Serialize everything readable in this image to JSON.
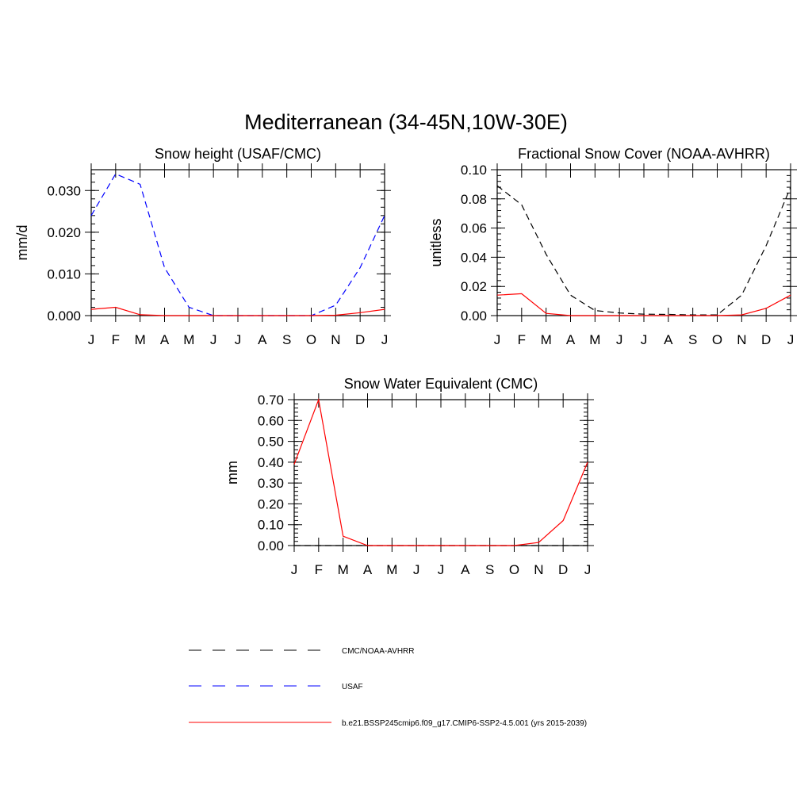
{
  "title": "Mediterranean (34-45N,10W-30E)",
  "month_labels": [
    "J",
    "F",
    "M",
    "A",
    "M",
    "J",
    "J",
    "A",
    "S",
    "O",
    "N",
    "D",
    "J"
  ],
  "colors": {
    "obs": "#000000",
    "usaf": "#0000ff",
    "model": "#ff0000"
  },
  "legend": [
    {
      "label": "CMC/NOAA-AVHRR",
      "color": "#000000",
      "dash": "dashed"
    },
    {
      "label": "USAF",
      "color": "#0000ff",
      "dash": "dashed"
    },
    {
      "label": "b.e21.BSSP245cmip6.f09_g17.CMIP6-SSP2-4.5.001 (yrs 2015-2039)",
      "color": "#ff0000",
      "dash": "solid"
    }
  ],
  "chart_data": [
    {
      "type": "line",
      "title": "Snow height (USAF/CMC)",
      "ylabel": "mm/d",
      "ylim": [
        0,
        0.035
      ],
      "yticks": [
        0,
        0.01,
        0.02,
        0.03
      ],
      "ytick_labels": [
        "0.000",
        "0.010",
        "0.020",
        "0.030"
      ],
      "x": [
        "J",
        "F",
        "M",
        "A",
        "M",
        "J",
        "J",
        "A",
        "S",
        "O",
        "N",
        "D",
        "J"
      ],
      "series": [
        {
          "name": "USAF",
          "color": "#0000ff",
          "dash": "dashed",
          "values": [
            0.024,
            0.034,
            0.0315,
            0.0115,
            0.002,
            0.0,
            0.0,
            0.0,
            0.0,
            0.0,
            0.0025,
            0.0115,
            0.024
          ]
        },
        {
          "name": "b.e21.BSSP245cmip6.f09_g17.CMIP6-SSP2-4.5.001 (yrs 2015-2039)",
          "color": "#ff0000",
          "dash": "solid",
          "values": [
            0.0015,
            0.002,
            0.0002,
            0.0,
            0.0,
            0.0,
            0.0,
            0.0,
            0.0,
            0.0,
            0.0001,
            0.0007,
            0.0015
          ]
        }
      ]
    },
    {
      "type": "line",
      "title": "Fractional Snow Cover (NOAA-AVHRR)",
      "ylabel": "unitless",
      "ylim": [
        0,
        0.1
      ],
      "yticks": [
        0,
        0.02,
        0.04,
        0.06,
        0.08,
        0.1
      ],
      "ytick_labels": [
        "0.00",
        "0.02",
        "0.04",
        "0.06",
        "0.08",
        "0.10"
      ],
      "x": [
        "J",
        "F",
        "M",
        "A",
        "M",
        "J",
        "J",
        "A",
        "S",
        "O",
        "N",
        "D",
        "J"
      ],
      "series": [
        {
          "name": "CMC/NOAA-AVHRR",
          "color": "#000000",
          "dash": "dashed",
          "values": [
            0.089,
            0.076,
            0.042,
            0.014,
            0.0035,
            0.0018,
            0.001,
            0.0008,
            0.0005,
            0.0005,
            0.014,
            0.048,
            0.088
          ]
        },
        {
          "name": "b.e21.BSSP245cmip6.f09_g17.CMIP6-SSP2-4.5.001 (yrs 2015-2039)",
          "color": "#ff0000",
          "dash": "solid",
          "values": [
            0.014,
            0.015,
            0.0015,
            0.0,
            0.0,
            0.0,
            0.0,
            0.0,
            0.0,
            0.0,
            0.0005,
            0.005,
            0.014
          ]
        }
      ]
    },
    {
      "type": "line",
      "title": "Snow Water Equivalent (CMC)",
      "ylabel": "mm",
      "ylim": [
        0,
        0.7
      ],
      "yticks": [
        0,
        0.1,
        0.2,
        0.3,
        0.4,
        0.5,
        0.6,
        0.7
      ],
      "ytick_labels": [
        "0.00",
        "0.10",
        "0.20",
        "0.30",
        "0.40",
        "0.50",
        "0.60",
        "0.70"
      ],
      "x": [
        "J",
        "F",
        "M",
        "A",
        "M",
        "J",
        "J",
        "A",
        "S",
        "O",
        "N",
        "D",
        "J"
      ],
      "series": [
        {
          "name": "CMC/NOAA-AVHRR",
          "color": "#000000",
          "dash": "dashed",
          "values": [
            0,
            0,
            0,
            0,
            0,
            0,
            0,
            0,
            0,
            0,
            0,
            0,
            0
          ]
        },
        {
          "name": "b.e21.BSSP245cmip6.f09_g17.CMIP6-SSP2-4.5.001 (yrs 2015-2039)",
          "color": "#ff0000",
          "dash": "solid",
          "values": [
            0.39,
            0.7,
            0.045,
            0.0,
            0.0,
            0.0,
            0.0,
            0.0,
            0.0,
            0.0,
            0.015,
            0.12,
            0.4
          ]
        }
      ]
    }
  ]
}
